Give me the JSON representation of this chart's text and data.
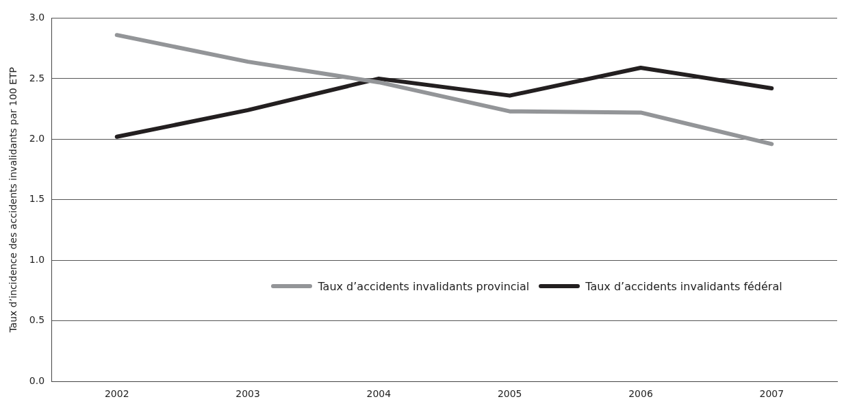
{
  "chart_data": {
    "type": "line",
    "ylabel": "Taux d’incidence des accidents invalidants par 100 ETP",
    "categories": [
      "2002",
      "2003",
      "2004",
      "2005",
      "2006",
      "2007"
    ],
    "series": [
      {
        "name": "Taux d’accidents invalidants provincial",
        "color": "#939598",
        "values": [
          2.86,
          2.64,
          2.47,
          2.23,
          2.22,
          1.96
        ]
      },
      {
        "name": "Taux d’accidents invalidants fédéral",
        "color": "#231f20",
        "values": [
          2.02,
          2.24,
          2.5,
          2.36,
          2.59,
          2.42
        ]
      }
    ],
    "ylim": [
      0,
      3
    ],
    "yticks": [
      {
        "value": 0,
        "label": "0.0"
      },
      {
        "value": 0.5,
        "label": "0.5"
      },
      {
        "value": 1,
        "label": "1.0"
      },
      {
        "value": 1.5,
        "label": "1.5"
      },
      {
        "value": 2,
        "label": "2.0"
      },
      {
        "value": 2.5,
        "label": "2.5"
      },
      {
        "value": 3,
        "label": "3.0"
      }
    ],
    "grid": "y",
    "legend": "right",
    "marker": "none",
    "line_style": "solid"
  }
}
